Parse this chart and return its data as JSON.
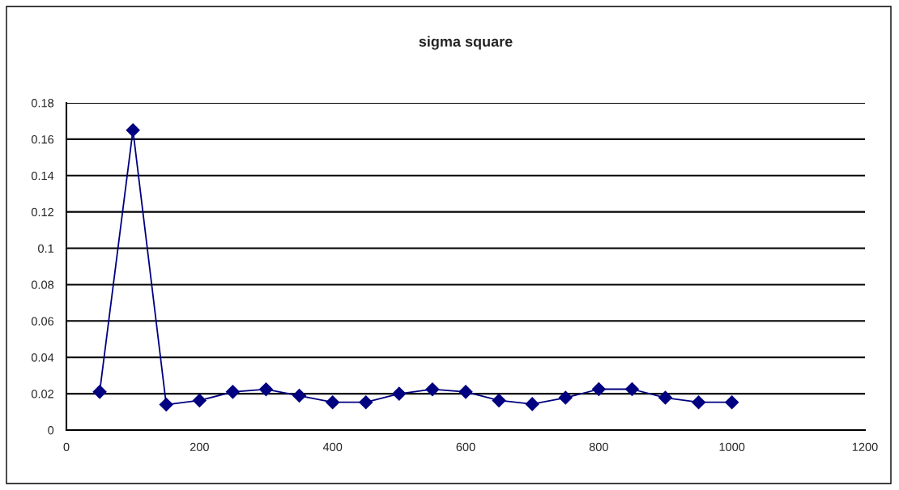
{
  "chart_data": {
    "type": "line",
    "title": "sigma square",
    "x": [
      50,
      100,
      150,
      200,
      250,
      300,
      350,
      400,
      450,
      500,
      550,
      600,
      650,
      700,
      750,
      800,
      850,
      900,
      950,
      1000
    ],
    "series": [
      {
        "color": "#000080",
        "values": [
          0.021,
          0.165,
          0.014,
          0.0163,
          0.021,
          0.0224,
          0.0189,
          0.0153,
          0.0153,
          0.02,
          0.0224,
          0.021,
          0.0163,
          0.0143,
          0.0178,
          0.0225,
          0.0225,
          0.0178,
          0.0153,
          0.0153
        ]
      }
    ],
    "xlim": [
      0,
      1200
    ],
    "xticks": [
      0,
      200,
      400,
      600,
      800,
      1000,
      1200
    ],
    "ylim": [
      0,
      0.18
    ],
    "yticks": [
      0,
      0.02,
      0.04,
      0.06,
      0.08,
      0.1,
      0.12,
      0.14,
      0.16,
      0.18
    ],
    "grid": "y",
    "marker": "diamond",
    "line_style": "solid",
    "legend": false
  }
}
